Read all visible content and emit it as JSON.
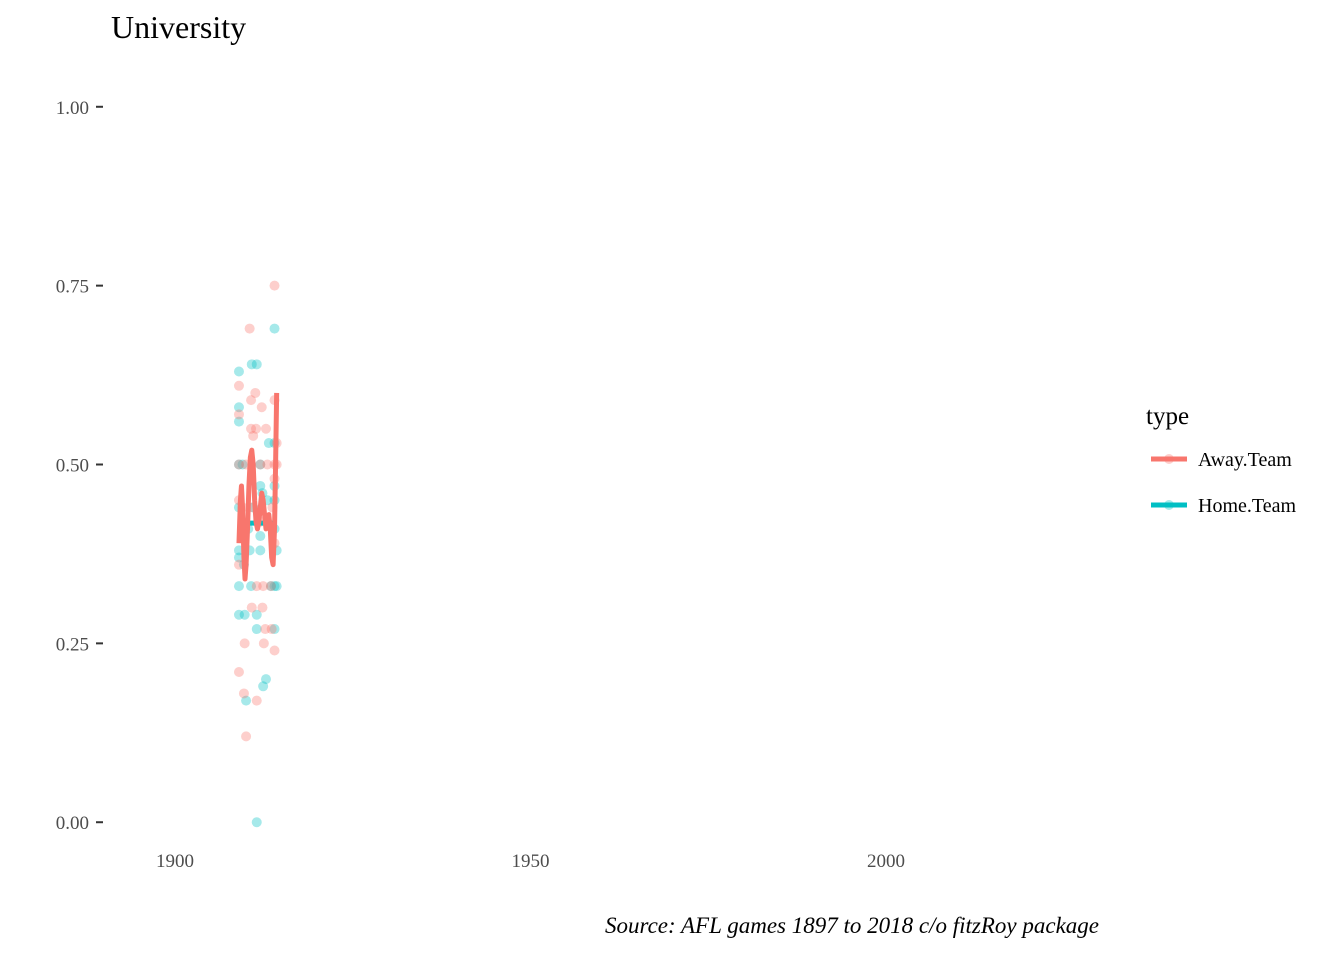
{
  "chart_data": {
    "type": "scatter",
    "title": "University",
    "caption": "Source: AFL games 1897 to 2018 c/o fitzRoy package",
    "xlabel": "",
    "ylabel": "",
    "xlim": [
      1891,
      2028.7
    ],
    "ylim": [
      -0.05,
      1.05
    ],
    "x_ticks": [
      1900,
      1950,
      2000
    ],
    "y_ticks": [
      0.0,
      0.25,
      0.5,
      0.75,
      1.0
    ],
    "y_tick_labels": [
      "0.00",
      "0.25",
      "0.50",
      "0.75",
      "1.00"
    ],
    "grid": false,
    "legend": {
      "title": "type",
      "position": "right"
    },
    "series": [
      {
        "name": "Away.Team",
        "color": "#F8766D",
        "points": [
          [
            1909,
            0.21
          ],
          [
            1909,
            0.36
          ],
          [
            1909,
            0.45
          ],
          [
            1909,
            0.5
          ],
          [
            1909,
            0.61
          ],
          [
            1909,
            0.57
          ],
          [
            1909.5,
            0.44
          ],
          [
            1909.5,
            0.4
          ],
          [
            1909.7,
            0.18
          ],
          [
            1909.8,
            0.25
          ],
          [
            1910,
            0.12
          ],
          [
            1910,
            0.5
          ],
          [
            1910.5,
            0.69
          ],
          [
            1910.7,
            0.59
          ],
          [
            1910.7,
            0.55
          ],
          [
            1910.8,
            0.3
          ],
          [
            1911,
            0.54
          ],
          [
            1911,
            0.44
          ],
          [
            1911.3,
            0.6
          ],
          [
            1911.4,
            0.55
          ],
          [
            1911.5,
            0.33
          ],
          [
            1911.5,
            0.17
          ],
          [
            1912,
            0.5
          ],
          [
            1912,
            0.42
          ],
          [
            1912.2,
            0.58
          ],
          [
            1912.3,
            0.3
          ],
          [
            1912.4,
            0.33
          ],
          [
            1912.5,
            0.25
          ],
          [
            1912.7,
            0.27
          ],
          [
            1912.8,
            0.55
          ],
          [
            1913,
            0.5
          ],
          [
            1913.5,
            0.33
          ],
          [
            1913.6,
            0.27
          ],
          [
            1913.7,
            0.44
          ],
          [
            1914,
            0.75
          ],
          [
            1914,
            0.59
          ],
          [
            1914,
            0.5
          ],
          [
            1914,
            0.48
          ],
          [
            1914,
            0.39
          ],
          [
            1914,
            0.24
          ],
          [
            1914.3,
            0.5
          ],
          [
            1914.3,
            0.53
          ]
        ],
        "trend": [
          [
            1909,
            0.39
          ],
          [
            1909.2,
            0.45
          ],
          [
            1909.35,
            0.47
          ],
          [
            1909.5,
            0.44
          ],
          [
            1909.7,
            0.37
          ],
          [
            1909.85,
            0.34
          ],
          [
            1910,
            0.36
          ],
          [
            1910.2,
            0.41
          ],
          [
            1910.4,
            0.47
          ],
          [
            1910.6,
            0.51
          ],
          [
            1910.8,
            0.52
          ],
          [
            1911.0,
            0.5
          ],
          [
            1911.2,
            0.45
          ],
          [
            1911.4,
            0.42
          ],
          [
            1911.6,
            0.41
          ],
          [
            1911.8,
            0.42
          ],
          [
            1912.0,
            0.44
          ],
          [
            1912.2,
            0.46
          ],
          [
            1912.4,
            0.45
          ],
          [
            1912.6,
            0.43
          ],
          [
            1912.8,
            0.41
          ],
          [
            1913.0,
            0.42
          ],
          [
            1913.2,
            0.43
          ],
          [
            1913.4,
            0.41
          ],
          [
            1913.6,
            0.37
          ],
          [
            1913.8,
            0.36
          ],
          [
            1914.0,
            0.41
          ],
          [
            1914.15,
            0.5
          ],
          [
            1914.3,
            0.6
          ]
        ]
      },
      {
        "name": "Home.Team",
        "color": "#00BFC4",
        "points": [
          [
            1909,
            0.63
          ],
          [
            1909,
            0.58
          ],
          [
            1909,
            0.56
          ],
          [
            1909,
            0.5
          ],
          [
            1909,
            0.44
          ],
          [
            1909,
            0.38
          ],
          [
            1909,
            0.37
          ],
          [
            1909,
            0.33
          ],
          [
            1909,
            0.29
          ],
          [
            1909.5,
            0.5
          ],
          [
            1909.7,
            0.36
          ],
          [
            1909.8,
            0.29
          ],
          [
            1910,
            0.17
          ],
          [
            1910.3,
            0.41
          ],
          [
            1910.5,
            0.38
          ],
          [
            1910.7,
            0.33
          ],
          [
            1910.8,
            0.64
          ],
          [
            1911,
            0.44
          ],
          [
            1911.5,
            0.64
          ],
          [
            1911.5,
            0.29
          ],
          [
            1911.5,
            0.27
          ],
          [
            1911.5,
            0.0
          ],
          [
            1912,
            0.5
          ],
          [
            1912,
            0.47
          ],
          [
            1912,
            0.4
          ],
          [
            1912,
            0.38
          ],
          [
            1912.3,
            0.46
          ],
          [
            1912.4,
            0.19
          ],
          [
            1912.8,
            0.2
          ],
          [
            1913,
            0.45
          ],
          [
            1913.2,
            0.53
          ],
          [
            1913.5,
            0.33
          ],
          [
            1914,
            0.69
          ],
          [
            1914,
            0.53
          ],
          [
            1914,
            0.47
          ],
          [
            1914,
            0.45
          ],
          [
            1914,
            0.41
          ],
          [
            1914,
            0.33
          ],
          [
            1914,
            0.27
          ],
          [
            1914.3,
            0.38
          ],
          [
            1914.3,
            0.33
          ]
        ],
        "trend": [
          [
            1909,
            0.418
          ],
          [
            1914.3,
            0.418
          ]
        ]
      }
    ]
  }
}
